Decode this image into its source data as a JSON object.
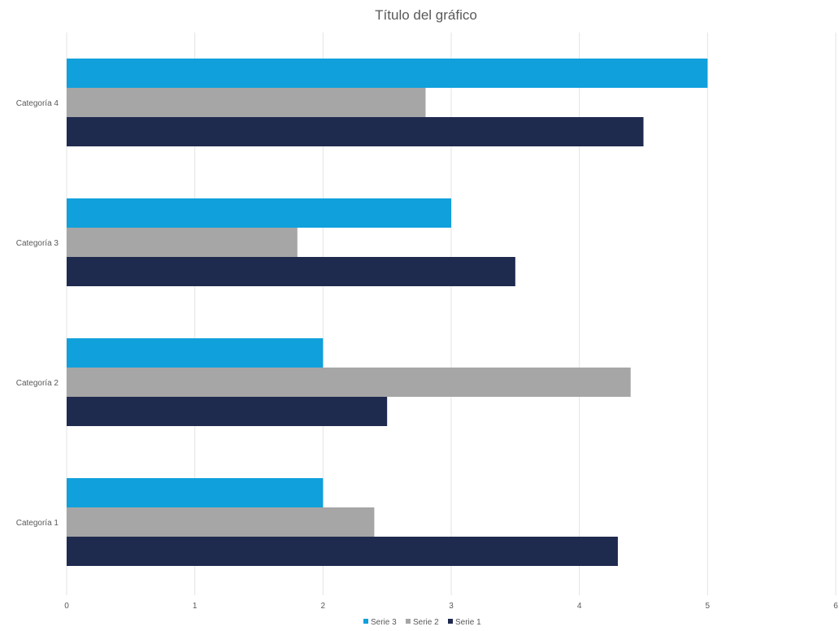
{
  "chart_data": {
    "type": "bar",
    "orientation": "horizontal",
    "title": "Título del gráfico",
    "categories": [
      "Categoría 1",
      "Categoría 2",
      "Categoría 3",
      "Categoría 4"
    ],
    "series": [
      {
        "name": "Serie 1",
        "values": [
          4.3,
          2.5,
          3.5,
          4.5
        ],
        "color": "#1f2a4f"
      },
      {
        "name": "Serie 2",
        "values": [
          2.4,
          4.4,
          1.8,
          2.8
        ],
        "color": "#a6a6a6"
      },
      {
        "name": "Serie 3",
        "values": [
          2,
          2,
          3,
          5
        ],
        "color": "#10a0dc"
      }
    ],
    "xlim": [
      0,
      6
    ],
    "x_ticks": [
      "0",
      "1",
      "2",
      "3",
      "4",
      "5",
      "6"
    ],
    "grid": true,
    "legend_position": "bottom",
    "legend_order": [
      "Serie 3",
      "Serie 2",
      "Serie 1"
    ]
  }
}
